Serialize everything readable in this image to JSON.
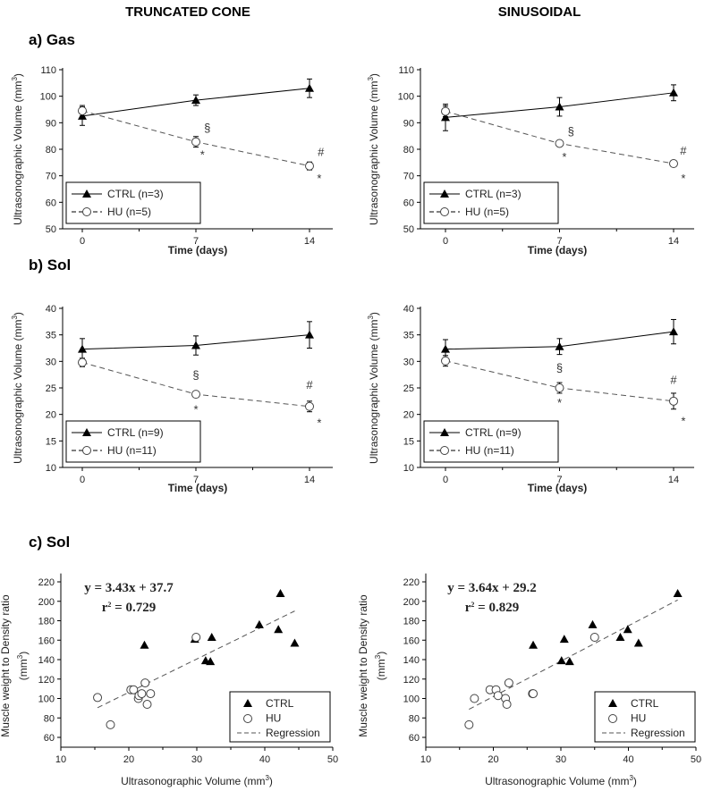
{
  "headers": {
    "left": "TRUNCATED CONE",
    "right": "SINUSOIDAL"
  },
  "panel_labels": {
    "a": "a) Gas",
    "b": "b) Sol",
    "c": "c) Sol"
  },
  "chart_data": [
    {
      "id": "gas-truncated-cone",
      "type": "line",
      "xlabel": "Time (days)",
      "ylabel": "Ultrasonographic Volume (mm3)",
      "ylim": [
        50,
        110
      ],
      "yticks": [
        50,
        60,
        70,
        80,
        90,
        100,
        110
      ],
      "xticks": [
        0,
        7,
        14
      ],
      "series": [
        {
          "name": "CTRL (n=3)",
          "marker": "filled-triangle",
          "style": "solid",
          "x": [
            0,
            7,
            14
          ],
          "y": [
            92.5,
            98.5,
            103
          ],
          "err": [
            3.5,
            2,
            3.5
          ]
        },
        {
          "name": "HU (n=5)",
          "marker": "open-circle",
          "style": "dashed",
          "x": [
            0,
            7,
            14
          ],
          "y": [
            94.5,
            82.8,
            73.7
          ],
          "err": [
            2,
            2,
            1.5
          ]
        }
      ],
      "annotations": [
        {
          "text": "§",
          "x": 7.7,
          "y": 86.5
        },
        {
          "text": "*",
          "x": 7.4,
          "y": 76.5
        },
        {
          "text": "#",
          "x": 14.7,
          "y": 77.5
        },
        {
          "text": "*",
          "x": 14.6,
          "y": 67.5
        }
      ]
    },
    {
      "id": "gas-sinusoidal",
      "type": "line",
      "xlabel": "Time (days)",
      "ylabel": "Ultrasonographic Volume (mm3)",
      "ylim": [
        50,
        110
      ],
      "yticks": [
        50,
        60,
        70,
        80,
        90,
        100,
        110
      ],
      "xticks": [
        0,
        7,
        14
      ],
      "series": [
        {
          "name": "CTRL (n=3)",
          "marker": "filled-triangle",
          "style": "solid",
          "x": [
            0,
            7,
            14
          ],
          "y": [
            92,
            96,
            101.3
          ],
          "err": [
            5,
            3.5,
            3
          ]
        },
        {
          "name": "HU (n=5)",
          "marker": "open-circle",
          "style": "dashed",
          "x": [
            0,
            7,
            14
          ],
          "y": [
            94.3,
            82.2,
            74.6
          ],
          "err": [
            2,
            1,
            0.5
          ]
        }
      ],
      "annotations": [
        {
          "text": "§",
          "x": 7.7,
          "y": 85.3
        },
        {
          "text": "*",
          "x": 7.3,
          "y": 75.7
        },
        {
          "text": "#",
          "x": 14.6,
          "y": 78
        },
        {
          "text": "*",
          "x": 14.6,
          "y": 67.5
        }
      ]
    },
    {
      "id": "sol-truncated-cone",
      "type": "line",
      "xlabel": "Time (days)",
      "ylabel": "Ultrasonographic Volume (mm3)",
      "ylim": [
        10,
        40
      ],
      "yticks": [
        10,
        15,
        20,
        25,
        30,
        35,
        40
      ],
      "xticks": [
        0,
        7,
        14
      ],
      "series": [
        {
          "name": "CTRL (n=9)",
          "marker": "filled-triangle",
          "style": "solid",
          "x": [
            0,
            7,
            14
          ],
          "y": [
            32.3,
            33,
            35
          ],
          "err": [
            2,
            1.8,
            2.5
          ]
        },
        {
          "name": "HU (n=11)",
          "marker": "open-circle",
          "style": "dashed",
          "x": [
            0,
            7,
            14
          ],
          "y": [
            29.8,
            23.8,
            21.5
          ],
          "err": [
            0.8,
            0.5,
            1
          ]
        }
      ],
      "annotations": [
        {
          "text": "§",
          "x": 7,
          "y": 26.7
        },
        {
          "text": "*",
          "x": 7,
          "y": 20.2
        },
        {
          "text": "#",
          "x": 14,
          "y": 24.8
        },
        {
          "text": "*",
          "x": 14.6,
          "y": 17.7
        }
      ]
    },
    {
      "id": "sol-sinusoidal",
      "type": "line",
      "xlabel": "Time (days)",
      "ylabel": "Ultrasonographic Volume (mm3)",
      "ylim": [
        10,
        40
      ],
      "yticks": [
        10,
        15,
        20,
        25,
        30,
        35,
        40
      ],
      "xticks": [
        0,
        7,
        14
      ],
      "series": [
        {
          "name": "CTRL (n=9)",
          "marker": "filled-triangle",
          "style": "solid",
          "x": [
            0,
            7,
            14
          ],
          "y": [
            32.3,
            32.8,
            35.6
          ],
          "err": [
            1.8,
            1.5,
            2.3
          ]
        },
        {
          "name": "HU (n=11)",
          "marker": "open-circle",
          "style": "dashed",
          "x": [
            0,
            7,
            14
          ],
          "y": [
            30.1,
            25,
            22.5
          ],
          "err": [
            1,
            1,
            1.5
          ]
        }
      ],
      "annotations": [
        {
          "text": "§",
          "x": 7,
          "y": 28
        },
        {
          "text": "*",
          "x": 7,
          "y": 21.5
        },
        {
          "text": "#",
          "x": 14,
          "y": 25.8
        },
        {
          "text": "*",
          "x": 14.6,
          "y": 18
        }
      ]
    },
    {
      "id": "scatter-truncated-cone",
      "type": "scatter",
      "xlabel": "Ultrasonographic Volume (mm3)",
      "ylabel": [
        "Muscle weight to Density ratio",
        "(mm3)"
      ],
      "xlim": [
        10,
        50
      ],
      "xticks": [
        10,
        20,
        30,
        40,
        50
      ],
      "ylim": [
        50,
        225
      ],
      "yticks": [
        60,
        80,
        100,
        120,
        140,
        160,
        180,
        200,
        220
      ],
      "equation": "y = 3.43x + 37.7",
      "r2": "r2 = 0.729",
      "regression": {
        "slope": 3.43,
        "intercept": 37.7,
        "x_range": [
          15.4,
          44.4
        ]
      },
      "legend": [
        "CTRL",
        "HU",
        "Regression"
      ],
      "ctrl": [
        [
          22.3,
          155
        ],
        [
          29.7,
          161
        ],
        [
          31.3,
          139
        ],
        [
          32,
          138
        ],
        [
          32.2,
          163
        ],
        [
          39.2,
          176
        ],
        [
          42,
          171
        ],
        [
          42.3,
          208
        ],
        [
          44.4,
          157
        ]
      ],
      "hu": [
        [
          15.4,
          101
        ],
        [
          17.3,
          73
        ],
        [
          20.3,
          109
        ],
        [
          20.7,
          109
        ],
        [
          21.4,
          100
        ],
        [
          21.5,
          103
        ],
        [
          21.9,
          105
        ],
        [
          22.4,
          116
        ],
        [
          22.7,
          94
        ],
        [
          23.2,
          105
        ],
        [
          29.9,
          163
        ]
      ]
    },
    {
      "id": "scatter-sinusoidal",
      "type": "scatter",
      "xlabel": "Ultrasonographic Volume (mm3)",
      "ylabel": [
        "Muscle weight to Density ratio",
        "(mm3)"
      ],
      "xlim": [
        10,
        50
      ],
      "xticks": [
        10,
        20,
        30,
        40,
        50
      ],
      "ylim": [
        50,
        225
      ],
      "yticks": [
        60,
        80,
        100,
        120,
        140,
        160,
        180,
        200,
        220
      ],
      "equation": "y = 3.64x + 29.2",
      "r2": "r2 = 0.829",
      "regression": {
        "slope": 3.64,
        "intercept": 29.2,
        "x_range": [
          16.4,
          47.3
        ]
      },
      "legend": [
        "CTRL",
        "HU",
        "Regression"
      ],
      "ctrl": [
        [
          25.9,
          155
        ],
        [
          30.1,
          139
        ],
        [
          30.5,
          161
        ],
        [
          31.3,
          138
        ],
        [
          34.7,
          176
        ],
        [
          38.8,
          163
        ],
        [
          39.9,
          171
        ],
        [
          41.5,
          157
        ],
        [
          47.3,
          208
        ]
      ],
      "hu": [
        [
          16.4,
          73
        ],
        [
          17.2,
          100
        ],
        [
          19.5,
          109
        ],
        [
          20.4,
          109
        ],
        [
          20.7,
          103
        ],
        [
          21.8,
          100
        ],
        [
          22,
          94
        ],
        [
          22.3,
          116
        ],
        [
          25.8,
          105
        ],
        [
          25.9,
          105
        ],
        [
          35,
          163
        ]
      ]
    }
  ]
}
